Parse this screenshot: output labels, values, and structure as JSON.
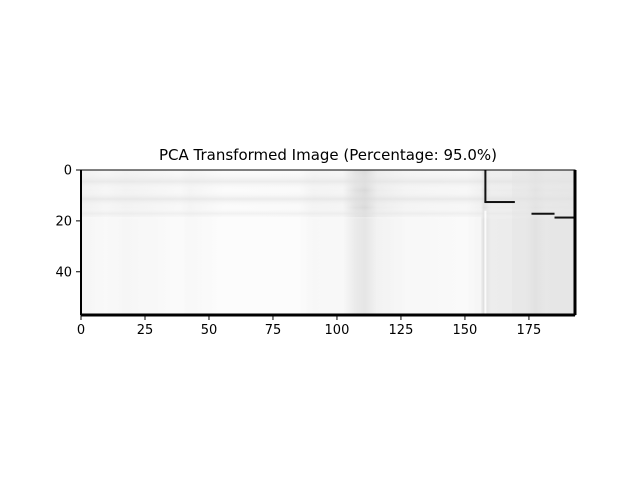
{
  "chart_data": {
    "type": "heatmap",
    "title": "PCA Transformed Image (Percentage: 95.0%)",
    "xlabel": "",
    "ylabel": "",
    "colormap": "gray",
    "xlim": [
      0,
      193
    ],
    "ylim": [
      57,
      0
    ],
    "x_ticks": [
      0,
      25,
      50,
      75,
      100,
      125,
      150,
      175
    ],
    "y_ticks": [
      0,
      20,
      40
    ],
    "image_size": {
      "rows": 57,
      "cols": 193
    },
    "grid": false,
    "legend": "none",
    "colors": {
      "background_band": "#f3f3f3",
      "dark_column_band": "#d9d9d9",
      "dark_marks": "#111111",
      "right_region": "#e8e8e8"
    }
  }
}
